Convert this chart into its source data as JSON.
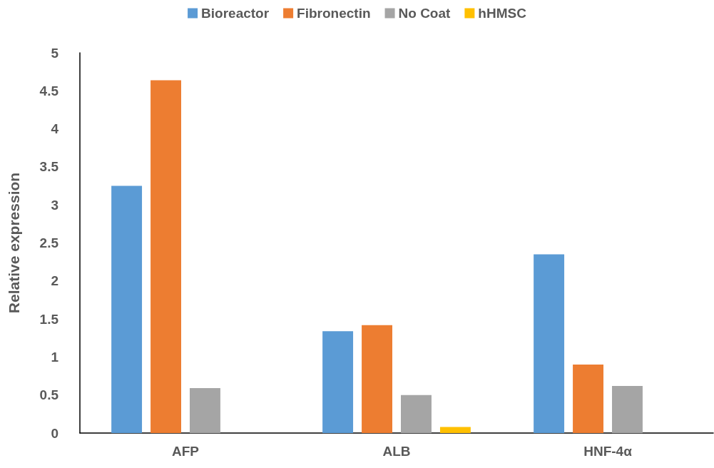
{
  "chart_data": {
    "type": "bar",
    "ylabel": "Relative expression",
    "categories": [
      "AFP",
      "ALB",
      "HNF-4α"
    ],
    "series": [
      {
        "name": "Bioreactor",
        "color": "#5b9bd5",
        "values": [
          3.25,
          1.34,
          2.35
        ]
      },
      {
        "name": "Fibronectin",
        "color": "#ed7d31",
        "values": [
          4.64,
          1.42,
          0.9
        ]
      },
      {
        "name": "No Coat",
        "color": "#a5a5a5",
        "values": [
          0.59,
          0.5,
          0.62
        ]
      },
      {
        "name": "hHMSC",
        "color": "#ffc000",
        "values": [
          0,
          0.08,
          0
        ]
      }
    ],
    "ylim": [
      0,
      5
    ],
    "yticks": [
      0,
      0.5,
      1,
      1.5,
      2,
      2.5,
      3,
      3.5,
      4,
      4.5,
      5
    ],
    "grid": false,
    "legend": "top"
  }
}
